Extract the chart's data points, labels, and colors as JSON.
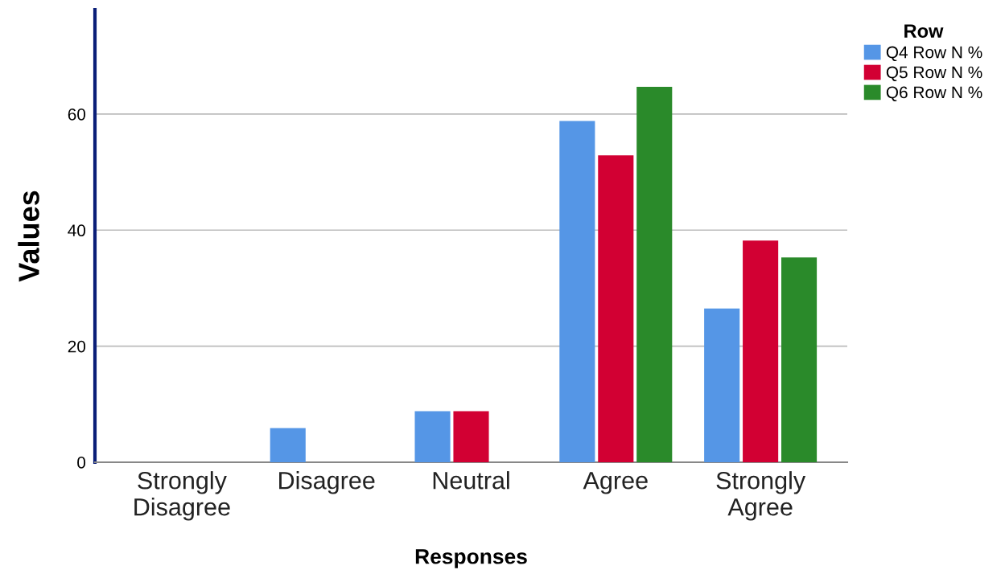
{
  "chart_data": {
    "type": "bar",
    "xlabel": "Responses",
    "ylabel": "Values",
    "legend_title": "Row",
    "categories": [
      "Strongly\nDisagree",
      "Disagree",
      "Neutral",
      "Agree",
      "Strongly\nAgree"
    ],
    "series": [
      {
        "name": "Q4 Row N %",
        "color": "#5596e6",
        "values": [
          0,
          5.9,
          8.8,
          58.8,
          26.5
        ]
      },
      {
        "name": "Q5 Row N %",
        "color": "#d20033",
        "values": [
          0,
          0,
          8.8,
          52.9,
          38.2
        ]
      },
      {
        "name": "Q6 Row N %",
        "color": "#2a8a2a",
        "values": [
          0,
          0,
          0,
          64.7,
          35.3
        ]
      }
    ],
    "ylim": [
      0,
      78
    ],
    "yticks": [
      0,
      20,
      40,
      60
    ],
    "grid": "y",
    "legend": "top right"
  }
}
